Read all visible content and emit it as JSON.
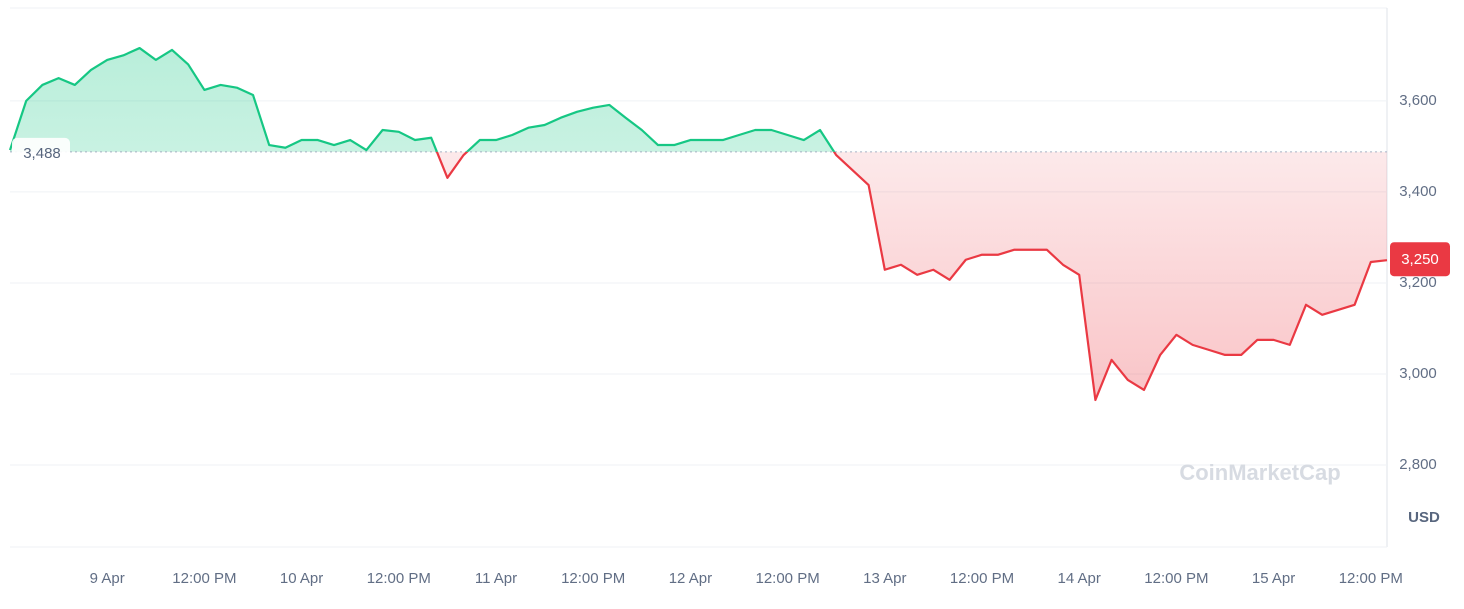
{
  "chart_data": {
    "type": "line",
    "x": [
      0,
      2,
      4,
      6,
      8,
      10,
      12,
      14,
      16,
      18,
      20,
      22,
      24,
      26,
      28,
      30,
      32,
      34,
      36,
      38,
      40,
      42,
      44,
      46,
      48,
      50,
      52,
      54,
      56,
      58,
      60,
      62,
      64,
      66,
      68,
      70,
      72,
      74,
      76,
      78,
      80,
      82,
      84,
      86,
      88,
      90,
      92,
      94,
      96,
      98,
      100,
      102,
      104,
      106,
      108,
      110,
      112,
      114,
      116,
      118,
      120,
      122,
      124,
      126,
      128,
      130,
      132,
      134,
      136,
      138,
      140,
      142,
      144,
      146,
      148,
      150,
      152,
      154,
      156,
      158,
      160,
      162,
      164,
      166,
      168,
      170
    ],
    "series": [
      {
        "name": "USD",
        "color": "#16c784",
        "color_below": "#ea3943",
        "values": [
          3492,
          3600,
          3635,
          3650,
          3635,
          3668,
          3690,
          3700,
          3716,
          3690,
          3712,
          3680,
          3624,
          3635,
          3629,
          3613,
          3503,
          3497,
          3514,
          3514,
          3503,
          3514,
          3492,
          3536,
          3532,
          3514,
          3519,
          3431,
          3481,
          3514,
          3514,
          3525,
          3541,
          3547,
          3563,
          3576,
          3585,
          3591,
          3563,
          3536,
          3503,
          3503,
          3514,
          3514,
          3514,
          3525,
          3536,
          3536,
          3525,
          3514,
          3536,
          3481,
          3448,
          3415,
          3229,
          3240,
          3218,
          3229,
          3207,
          3251,
          3262,
          3262,
          3273,
          3273,
          3273,
          3240,
          3218,
          2943,
          3031,
          2987,
          2965,
          3042,
          3086,
          3064,
          3053,
          3042,
          3042,
          3075,
          3075,
          3064,
          3152,
          3130,
          3141,
          3152,
          3246,
          3250
        ]
      }
    ],
    "baseline": {
      "value": 3488,
      "label": "3,488"
    },
    "last_price": {
      "value": 3250,
      "label": "3,250"
    },
    "xlim": [
      0,
      170
    ],
    "xticks": [
      {
        "value": 12,
        "label": "9 Apr"
      },
      {
        "value": 24,
        "label": "12:00 PM"
      },
      {
        "value": 36,
        "label": "10 Apr"
      },
      {
        "value": 48,
        "label": "12:00 PM"
      },
      {
        "value": 60,
        "label": "11 Apr"
      },
      {
        "value": 72,
        "label": "12:00 PM"
      },
      {
        "value": 84,
        "label": "12 Apr"
      },
      {
        "value": 96,
        "label": "12:00 PM"
      },
      {
        "value": 108,
        "label": "13 Apr"
      },
      {
        "value": 120,
        "label": "12:00 PM"
      },
      {
        "value": 132,
        "label": "14 Apr"
      },
      {
        "value": 144,
        "label": "12:00 PM"
      },
      {
        "value": 156,
        "label": "15 Apr"
      },
      {
        "value": 168,
        "label": "12:00 PM"
      }
    ],
    "ylim": [
      2620,
      3804
    ],
    "yticks": [
      {
        "value": 2800,
        "label": "2,800"
      },
      {
        "value": 3000,
        "label": "3,000"
      },
      {
        "value": 3200,
        "label": "3,200"
      },
      {
        "value": 3400,
        "label": "3,400"
      },
      {
        "value": 3600,
        "label": "3,600"
      }
    ],
    "grid": true,
    "watermark": "CoinMarketCap"
  }
}
